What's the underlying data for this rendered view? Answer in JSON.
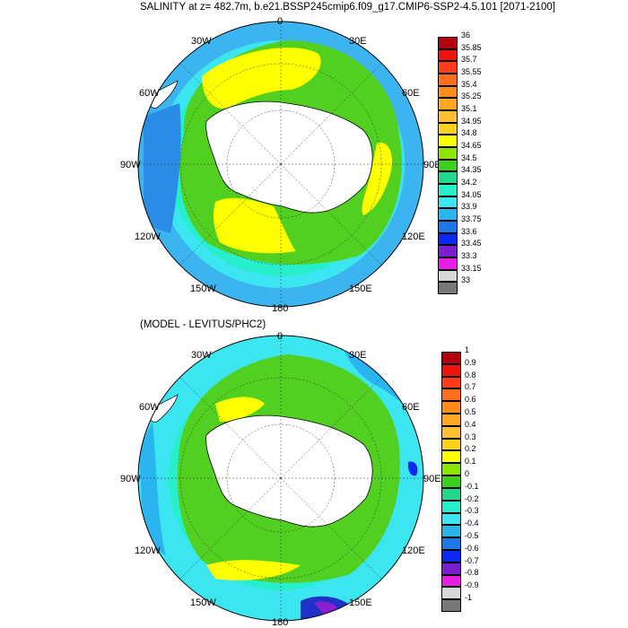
{
  "top_panel": {
    "title": "SALINITY at z= 482.7m, b.e21.BSSP245cmip6.f09_g17.CMIP6-SSP2-4.5.101 [2071-2100]",
    "longitude_labels": {
      "top": "0",
      "top_right": "30E",
      "right_upper": "60E",
      "right": "90E",
      "right_lower": "120E",
      "bottom_right": "150E",
      "bottom": "180",
      "bottom_left": "150W",
      "left_lower": "120W",
      "left": "90W",
      "left_upper": "60W",
      "top_left": "30W"
    },
    "colorbar": {
      "labels": [
        "36",
        "35.85",
        "35.7",
        "35.55",
        "35.4",
        "35.25",
        "35.1",
        "34.95",
        "34.8",
        "34.65",
        "34.5",
        "34.35",
        "34.2",
        "34.05",
        "33.9",
        "33.75",
        "33.6",
        "33.45",
        "33.3",
        "33.15",
        "33"
      ],
      "colors": [
        "#b2000f",
        "#ee1410",
        "#ff3b1a",
        "#ff6e19",
        "#ff8c1c",
        "#ffa722",
        "#ffbe33",
        "#ffd11a",
        "#ffff00",
        "#8ce600",
        "#3ccf1e",
        "#22d88c",
        "#27eecb",
        "#3ce6f0",
        "#2ab4f0",
        "#1e78e6",
        "#0a28f0",
        "#7a1ed2",
        "#e61ee6",
        "#d7d7d7",
        "#787878"
      ]
    }
  },
  "bottom_panel": {
    "title": "(MODEL - LEVITUS/PHC2)",
    "longitude_labels": {
      "top": "0",
      "top_right": "30E",
      "right_upper": "60E",
      "right": "90E",
      "right_lower": "120E",
      "bottom_right": "150E",
      "bottom": "180",
      "bottom_left": "150W",
      "left_lower": "120W",
      "left": "90W",
      "left_upper": "60W",
      "top_left": "30W"
    },
    "colorbar": {
      "labels": [
        "1",
        "0.9",
        "0.8",
        "0.7",
        "0.6",
        "0.5",
        "0.4",
        "0.3",
        "0.2",
        "0.1",
        "0",
        "-0.1",
        "-0.2",
        "-0.3",
        "-0.4",
        "-0.5",
        "-0.6",
        "-0.7",
        "-0.8",
        "-0.9",
        "-1"
      ],
      "colors": [
        "#b2000f",
        "#ee1410",
        "#ff3b1a",
        "#ff6e19",
        "#ff8c1c",
        "#ffa722",
        "#ffbe33",
        "#ffd11a",
        "#ffff00",
        "#8ce600",
        "#3ccf1e",
        "#22d88c",
        "#27eecb",
        "#3ce6f0",
        "#2ab4f0",
        "#1e78e6",
        "#0a28f0",
        "#7a1ed2",
        "#e61ee6",
        "#d7d7d7",
        "#787878"
      ]
    }
  },
  "palette": {
    "land": "#ffffff",
    "deep_blue": "#2a8ce6",
    "blue": "#3cb4f0",
    "light_blue": "#5ad2f5",
    "cyan": "#3ce6e6",
    "aqua": "#28e6c8",
    "green_teal": "#22d88c",
    "green": "#52d022",
    "yellow_green": "#8ce600",
    "yellow": "#ffff00",
    "violet": "#8c1ed2",
    "navy": "#1e32c8"
  }
}
